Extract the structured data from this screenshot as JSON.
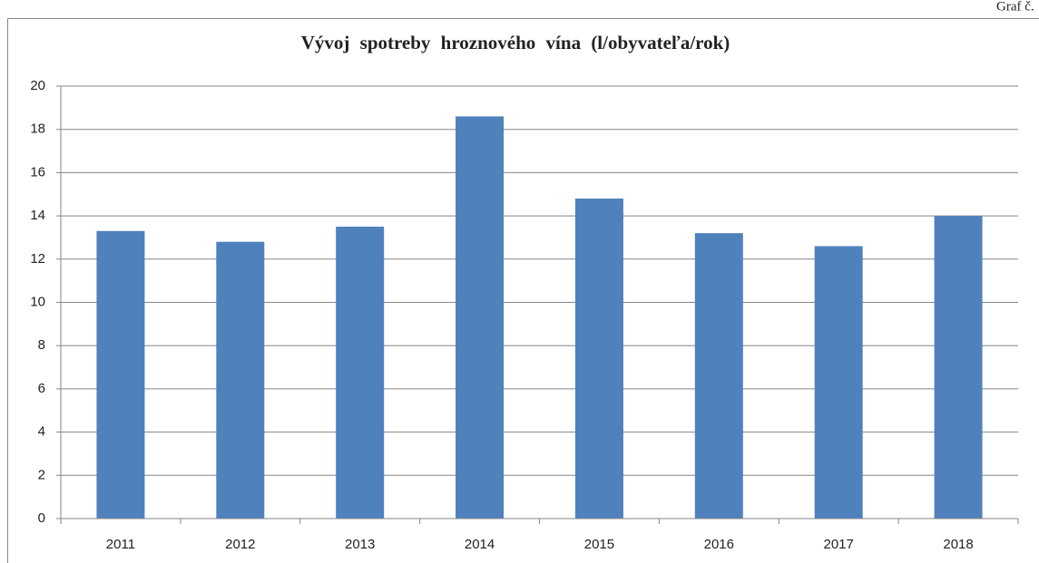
{
  "label": "Graf č.",
  "chart_data": {
    "type": "bar",
    "title": "Vývoj spotreby hroznového vína (l/obyvateľa/rok)",
    "categories": [
      "2011",
      "2012",
      "2013",
      "2014",
      "2015",
      "2016",
      "2017",
      "2018"
    ],
    "values": [
      13.3,
      12.8,
      13.5,
      18.6,
      14.8,
      13.2,
      12.6,
      14.0
    ],
    "color": "#4f81bd",
    "ylim": [
      0,
      20
    ],
    "yticks": [
      0,
      2,
      4,
      6,
      8,
      10,
      12,
      14,
      16,
      18,
      20
    ],
    "grid": true
  }
}
